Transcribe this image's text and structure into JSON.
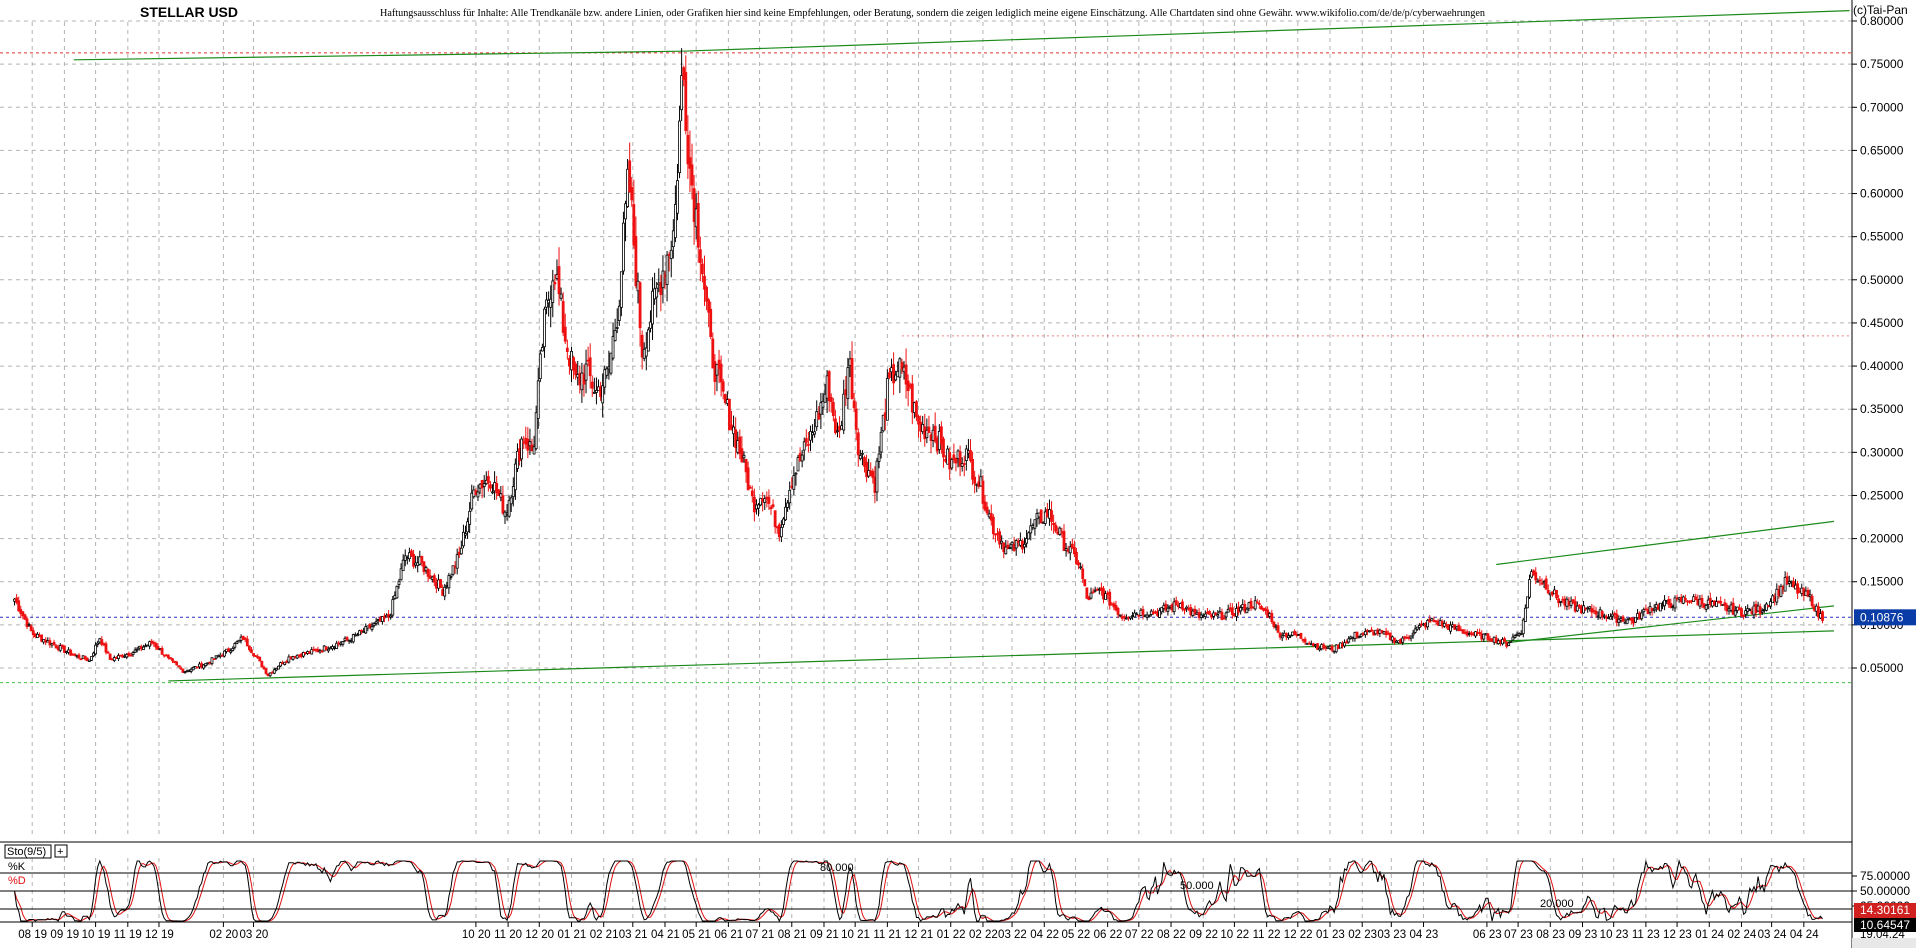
{
  "header": {
    "title": "STELLAR USD",
    "disclaimer": "Haftungsausschluss für Inhalte: Alle Trendkanäle bzw. andere Linien, oder Grafiken hier sind keine Empfehlungen, oder Beratung, sondern die zeigen lediglich meine eigene Einschätzung. Alle Chartdaten sind ohne Gewähr. www.wikifolio.com/de/de/p/cyberwaehrungen",
    "copyright": "(c)Tai-Pan"
  },
  "colors": {
    "up_candle": "#000000",
    "down_candle": "#ee1111",
    "trendline": "#1a8a1a",
    "grid": "#b4b4b4",
    "resistance_line": "#e03030",
    "price_line": "#3030c0",
    "support_line": "#40c040",
    "stoch_k": "#000000",
    "stoch_d": "#e01010",
    "price_badge_bg": "#0a3ca8",
    "stoch_badge_bg": "#d02020",
    "stoch_badge2_bg": "#000000"
  },
  "chart_data": [
    {
      "type": "candlestick",
      "title": "STELLAR USD",
      "ylim": [
        0.03,
        0.81
      ],
      "ytick_labels": [
        "0.80000",
        "0.75000",
        "0.70000",
        "0.65000",
        "0.60000",
        "0.55000",
        "0.50000",
        "0.45000",
        "0.40000",
        "0.35000",
        "0.30000",
        "0.25000",
        "0.20000",
        "0.15000",
        "0.10000",
        "0.05000"
      ],
      "yticks": [
        0.8,
        0.75,
        0.7,
        0.65,
        0.6,
        0.55,
        0.5,
        0.45,
        0.4,
        0.35,
        0.3,
        0.25,
        0.2,
        0.15,
        0.1,
        0.05
      ],
      "x_labels": [
        "08 19",
        "09 19",
        "10 19",
        "11 19",
        "12 19",
        "02 20",
        "03 20",
        "10 20",
        "11 20",
        "12 20",
        "01 21",
        "02 21",
        "03 21",
        "04 21",
        "05 21",
        "06 21",
        "07 21",
        "08 21",
        "09 21",
        "10 21",
        "11 21",
        "12 21",
        "01 22",
        "02 22",
        "03 22",
        "04 22",
        "05 22",
        "06 22",
        "07 22",
        "08 22",
        "09 22",
        "10 22",
        "11 22",
        "12 22",
        "01 23",
        "02 23",
        "03 23",
        "04 23",
        "06 23",
        "07 23",
        "08 23",
        "09 23",
        "10 23",
        "11 23",
        "12 23",
        "01 24",
        "02 24",
        "03 24",
        "04 24"
      ],
      "x_dates": [
        "2019-08",
        "2019-09",
        "2019-10",
        "2019-11",
        "2019-12",
        "2020-02",
        "2020-03",
        "2020-10",
        "2020-11",
        "2020-12",
        "2021-01",
        "2021-02",
        "2021-03",
        "2021-04",
        "2021-05",
        "2021-06",
        "2021-07",
        "2021-08",
        "2021-09",
        "2021-10",
        "2021-11",
        "2021-12",
        "2022-01",
        "2022-02",
        "2022-03",
        "2022-04",
        "2022-05",
        "2022-06",
        "2022-07",
        "2022-08",
        "2022-09",
        "2022-10",
        "2022-11",
        "2022-12",
        "2023-01",
        "2023-02",
        "2023-03",
        "2023-04",
        "2023-06",
        "2023-07",
        "2023-08",
        "2023-09",
        "2023-10",
        "2023-11",
        "2023-12",
        "2024-01",
        "2024-02",
        "2024-03",
        "2024-04"
      ],
      "last_date": "19.04.24",
      "current_price_label": "0.10876",
      "current_price": 0.10876,
      "resistance_level": 0.763,
      "support_level": 0.033,
      "recent_resistance": 0.435,
      "close_path": [
        [
          "2019-07-15",
          0.13
        ],
        [
          "2019-08-01",
          0.09
        ],
        [
          "2019-08-20",
          0.078
        ],
        [
          "2019-09-10",
          0.065
        ],
        [
          "2019-09-25",
          0.059
        ],
        [
          "2019-10-05",
          0.085
        ],
        [
          "2019-10-15",
          0.06
        ],
        [
          "2019-11-05",
          0.068
        ],
        [
          "2019-11-25",
          0.08
        ],
        [
          "2019-12-10",
          0.06
        ],
        [
          "2019-12-25",
          0.046
        ],
        [
          "2020-01-15",
          0.055
        ],
        [
          "2020-02-05",
          0.07
        ],
        [
          "2020-02-20",
          0.085
        ],
        [
          "2020-03-05",
          0.06
        ],
        [
          "2020-03-15",
          0.042
        ],
        [
          "2020-03-25",
          0.053
        ],
        [
          "2020-04-05",
          0.063
        ],
        [
          "2020-05-01",
          0.07
        ],
        [
          "2020-06-01",
          0.083
        ],
        [
          "2020-07-10",
          0.11
        ],
        [
          "2020-07-25",
          0.18
        ],
        [
          "2020-08-10",
          0.17
        ],
        [
          "2020-08-30",
          0.14
        ],
        [
          "2020-09-15",
          0.18
        ],
        [
          "2020-09-30",
          0.26
        ],
        [
          "2020-10-15",
          0.27
        ],
        [
          "2020-10-30",
          0.23
        ],
        [
          "2020-11-15",
          0.32
        ],
        [
          "2020-11-25",
          0.3
        ],
        [
          "2020-12-05",
          0.44
        ],
        [
          "2020-12-15",
          0.52
        ],
        [
          "2020-12-25",
          0.44
        ],
        [
          "2021-01-05",
          0.38
        ],
        [
          "2021-01-15",
          0.395
        ],
        [
          "2021-01-25",
          0.37
        ],
        [
          "2021-02-05",
          0.39
        ],
        [
          "2021-02-15",
          0.47
        ],
        [
          "2021-02-25",
          0.62
        ],
        [
          "2021-03-10",
          0.42
        ],
        [
          "2021-03-25",
          0.49
        ],
        [
          "2021-04-10",
          0.56
        ],
        [
          "2021-04-18",
          0.75
        ],
        [
          "2021-04-25",
          0.63
        ],
        [
          "2021-05-05",
          0.54
        ],
        [
          "2021-05-15",
          0.42
        ],
        [
          "2021-05-25",
          0.37
        ],
        [
          "2021-06-05",
          0.33
        ],
        [
          "2021-06-15",
          0.29
        ],
        [
          "2021-06-25",
          0.24
        ],
        [
          "2021-07-05",
          0.255
        ],
        [
          "2021-07-20",
          0.21
        ],
        [
          "2021-08-01",
          0.27
        ],
        [
          "2021-08-20",
          0.32
        ],
        [
          "2021-09-05",
          0.38
        ],
        [
          "2021-09-15",
          0.31
        ],
        [
          "2021-09-25",
          0.41
        ],
        [
          "2021-10-05",
          0.3
        ],
        [
          "2021-10-20",
          0.265
        ],
        [
          "2021-11-01",
          0.37
        ],
        [
          "2021-11-10",
          0.4
        ],
        [
          "2021-11-20",
          0.38
        ],
        [
          "2021-12-01",
          0.33
        ],
        [
          "2021-12-15",
          0.325
        ],
        [
          "2022-01-01",
          0.285
        ],
        [
          "2022-01-15",
          0.3
        ],
        [
          "2022-01-30",
          0.26
        ],
        [
          "2022-02-10",
          0.215
        ],
        [
          "2022-02-25",
          0.185
        ],
        [
          "2022-03-10",
          0.195
        ],
        [
          "2022-03-25",
          0.22
        ],
        [
          "2022-04-05",
          0.23
        ],
        [
          "2022-04-20",
          0.195
        ],
        [
          "2022-05-05",
          0.17
        ],
        [
          "2022-05-12",
          0.13
        ],
        [
          "2022-05-25",
          0.14
        ],
        [
          "2022-06-15",
          0.11
        ],
        [
          "2022-07-01",
          0.115
        ],
        [
          "2022-07-20",
          0.115
        ],
        [
          "2022-08-10",
          0.125
        ],
        [
          "2022-08-25",
          0.11
        ],
        [
          "2022-09-15",
          0.11
        ],
        [
          "2022-10-01",
          0.115
        ],
        [
          "2022-10-20",
          0.125
        ],
        [
          "2022-11-05",
          0.11
        ],
        [
          "2022-11-12",
          0.09
        ],
        [
          "2022-11-30",
          0.088
        ],
        [
          "2022-12-20",
          0.075
        ],
        [
          "2023-01-05",
          0.072
        ],
        [
          "2023-01-25",
          0.088
        ],
        [
          "2023-02-15",
          0.092
        ],
        [
          "2023-03-10",
          0.08
        ],
        [
          "2023-03-25",
          0.095
        ],
        [
          "2023-04-10",
          0.105
        ],
        [
          "2023-04-25",
          0.098
        ],
        [
          "2023-05-15",
          0.09
        ],
        [
          "2023-06-05",
          0.085
        ],
        [
          "2023-06-20",
          0.078
        ],
        [
          "2023-07-05",
          0.095
        ],
        [
          "2023-07-13",
          0.16
        ],
        [
          "2023-07-25",
          0.15
        ],
        [
          "2023-08-10",
          0.128
        ],
        [
          "2023-08-25",
          0.12
        ],
        [
          "2023-09-15",
          0.115
        ],
        [
          "2023-10-01",
          0.108
        ],
        [
          "2023-10-20",
          0.105
        ],
        [
          "2023-11-05",
          0.12
        ],
        [
          "2023-11-25",
          0.125
        ],
        [
          "2023-12-10",
          0.13
        ],
        [
          "2023-12-30",
          0.125
        ],
        [
          "2024-01-15",
          0.12
        ],
        [
          "2024-02-01",
          0.115
        ],
        [
          "2024-02-20",
          0.118
        ],
        [
          "2024-03-05",
          0.135
        ],
        [
          "2024-03-15",
          0.15
        ],
        [
          "2024-03-28",
          0.138
        ],
        [
          "2024-04-08",
          0.13
        ],
        [
          "2024-04-15",
          0.112
        ],
        [
          "2024-04-19",
          0.109
        ]
      ],
      "trendlines": [
        {
          "from": [
            "2019-09-10",
            0.755
          ],
          "to": [
            "2021-04-18",
            0.765
          ]
        },
        {
          "from": [
            "2021-04-18",
            0.765
          ],
          "to": [
            "2024-05-15",
            0.812
          ]
        },
        {
          "from": [
            "2019-12-10",
            0.035
          ],
          "to": [
            "2024-04-30",
            0.093
          ]
        },
        {
          "from": [
            "2023-06-10",
            0.078
          ],
          "to": [
            "2024-04-30",
            0.122
          ]
        },
        {
          "from": [
            "2023-06-10",
            0.17
          ],
          "to": [
            "2024-04-30",
            0.22
          ]
        }
      ]
    },
    {
      "type": "line",
      "title": "Sto(9/5)",
      "series": [
        {
          "name": "%K"
        },
        {
          "name": "%D"
        }
      ],
      "ylim": [
        0,
        100
      ],
      "ytick_labels": [
        "75.00000",
        "50.00000",
        "25.00000"
      ],
      "level_labels": [
        "80.000",
        "50.000",
        "20.000"
      ],
      "levels": [
        80,
        50,
        20
      ],
      "last_k_label": "14.30161",
      "last_d_label": "10.64547"
    }
  ]
}
